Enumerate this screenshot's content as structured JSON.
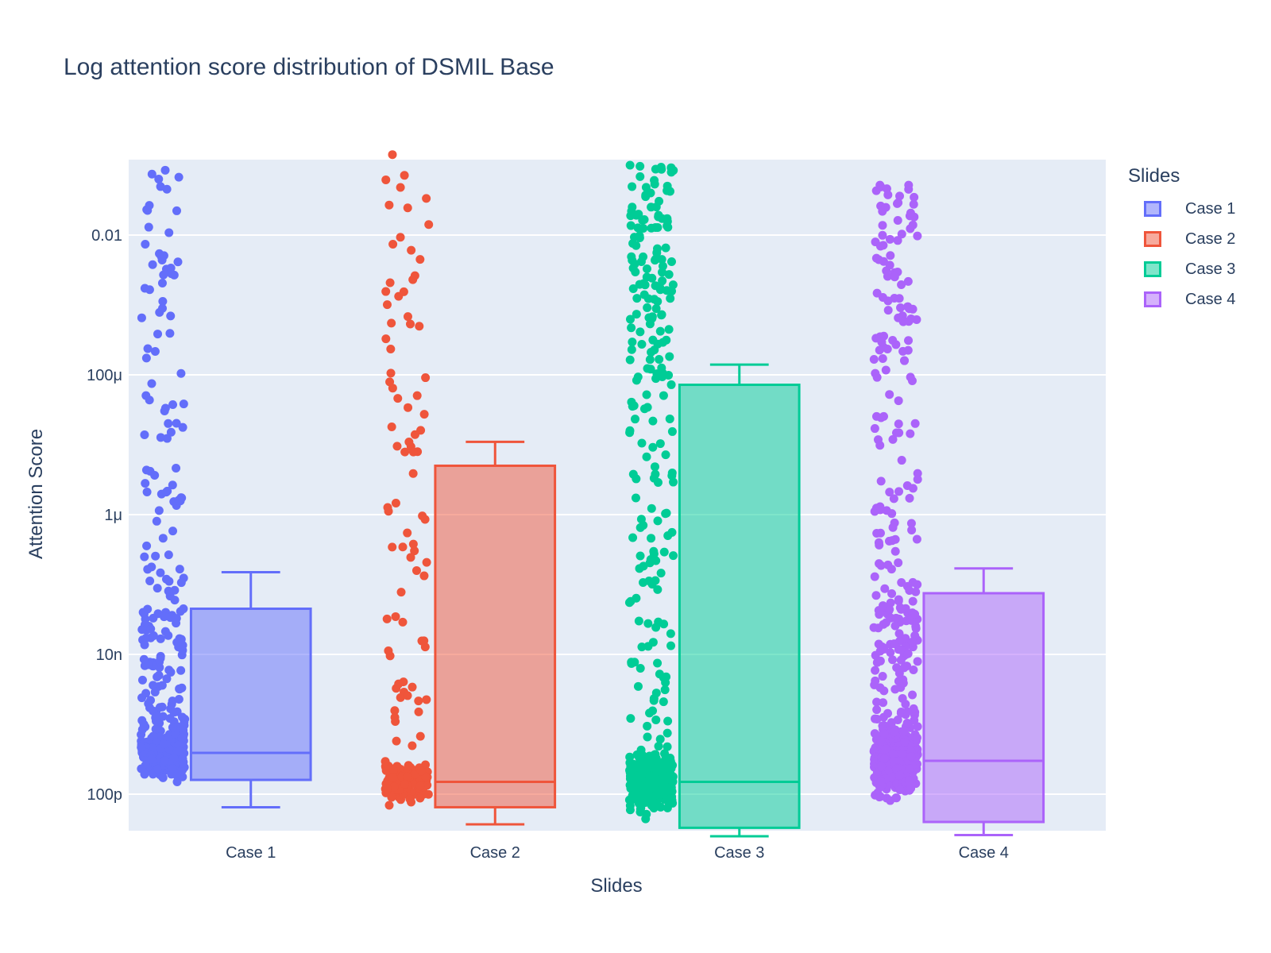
{
  "chart_data": {
    "type": "box",
    "title": "Log attention score distribution of DSMIL Base",
    "xlabel": "Slides",
    "ylabel": "Attention Score",
    "yscale": "log",
    "ylim": [
      3e-11,
      0.12
    ],
    "ytick_values": [
      1e-10,
      1e-08,
      1e-06,
      0.0001,
      0.01
    ],
    "ytick_labels": [
      "100p",
      "10n",
      "1μ",
      "100μ",
      "0.01"
    ],
    "categories": [
      "Case 1",
      "Case 2",
      "Case 3",
      "Case 4"
    ],
    "legend_title": "Slides",
    "legend_position": "top-right",
    "grid": true,
    "points_shown": "all",
    "series": [
      {
        "name": "Case 1",
        "color": "#636efa",
        "whisker_low": 6.5e-11,
        "q1": 1.6e-10,
        "median": 3.9e-10,
        "q3": 4.5e-08,
        "whisker_high": 1.5e-07,
        "n_points": 420,
        "point_max": 0.11
      },
      {
        "name": "Case 2",
        "color": "#ef553b",
        "whisker_low": 3.7e-11,
        "q1": 6.5e-11,
        "median": 1.5e-10,
        "q3": 5e-06,
        "whisker_high": 1.1e-05,
        "n_points": 190,
        "point_max": 0.17
      },
      {
        "name": "Case 3",
        "color": "#00cc96",
        "whisker_low": 2.5e-11,
        "q1": 3.3e-11,
        "median": 1.5e-10,
        "q3": 7.2e-05,
        "whisker_high": 0.00014,
        "n_points": 520,
        "point_max": 0.1
      },
      {
        "name": "Case 4",
        "color": "#ab63fa",
        "whisker_low": 2.6e-11,
        "q1": 4e-11,
        "median": 3e-10,
        "q3": 7.5e-08,
        "whisker_high": 1.7e-07,
        "n_points": 560,
        "point_max": 0.06
      }
    ]
  }
}
